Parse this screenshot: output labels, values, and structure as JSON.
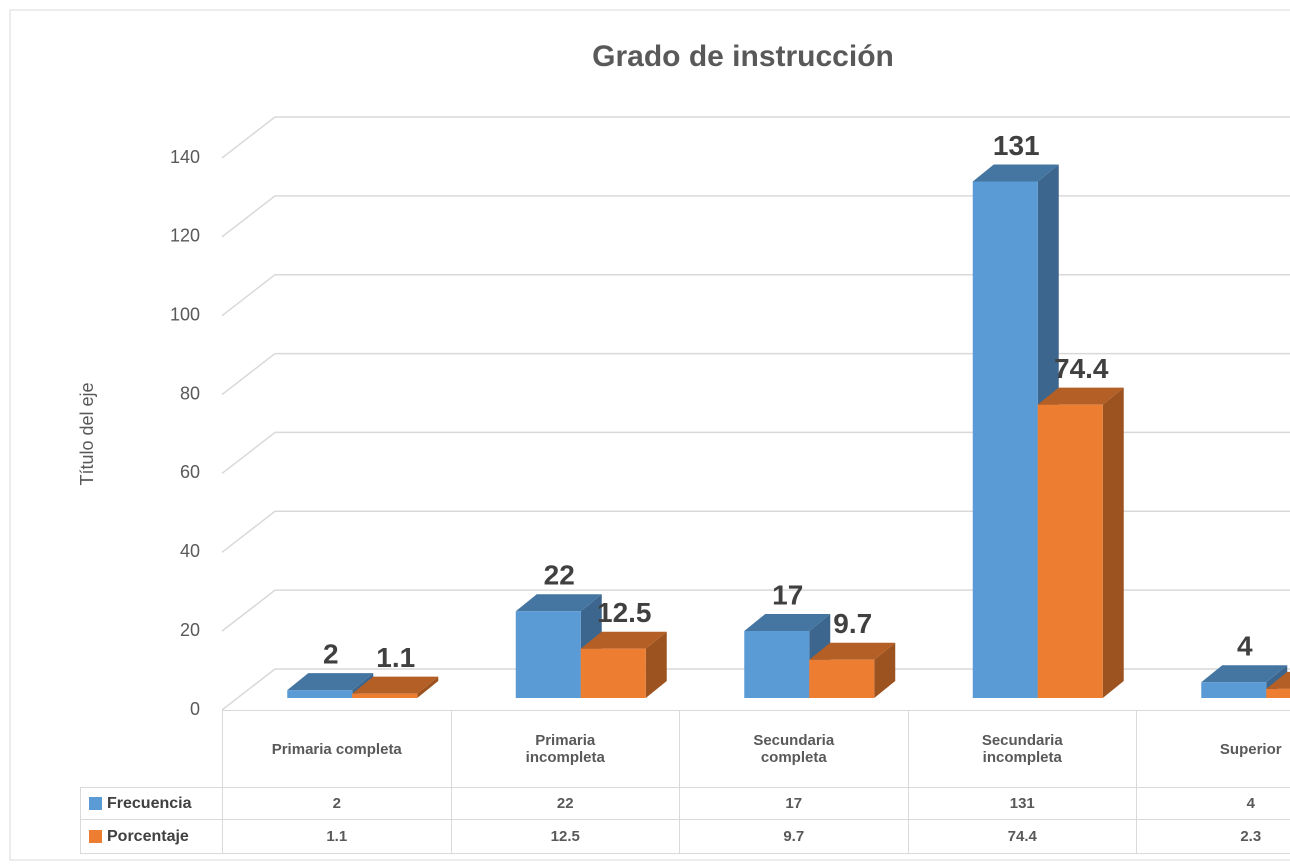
{
  "chart_data": {
    "type": "bar3d",
    "title": "Grado de instrucción",
    "y_axis_label": "Título del eje",
    "categories": [
      "Primaria completa",
      "Primaria incompleta",
      "Secundaria completa",
      "Secundaria incompleta",
      "Superior"
    ],
    "series": [
      {
        "name": "Frecuencia",
        "color": "#5b9bd5",
        "values": [
          2,
          22,
          17,
          131,
          4
        ]
      },
      {
        "name": "Porcentaje",
        "color": "#ed7d31",
        "values": [
          1.1,
          12.5,
          9.7,
          74.4,
          2.3
        ]
      }
    ],
    "ylim": [
      0,
      140
    ],
    "yticks": [
      0,
      20,
      40,
      60,
      80,
      100,
      120,
      140
    ],
    "grid": true,
    "data_table": true
  }
}
